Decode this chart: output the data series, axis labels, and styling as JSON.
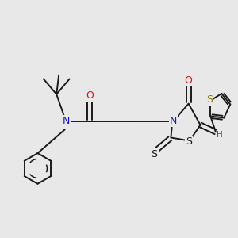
{
  "bg_color": "#e8e8e8",
  "bond_color": "#1a1a1a",
  "n_color": "#1a1acc",
  "o_color": "#cc1a1a",
  "s_color": "#808000",
  "h_color": "#555555",
  "lw": 1.4,
  "figsize": [
    3.0,
    3.0
  ],
  "dpi": 100,
  "xlim": [
    0,
    10
  ],
  "ylim": [
    0,
    10
  ]
}
